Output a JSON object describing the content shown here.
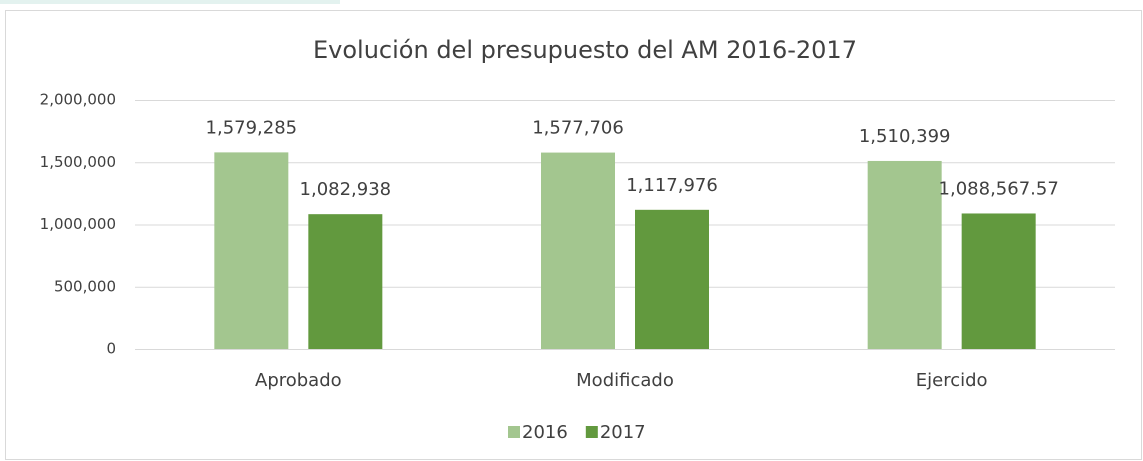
{
  "chart_data": {
    "type": "bar",
    "title": "Evolución del presupuesto del AM 2016-2017",
    "categories": [
      "Aprobado",
      "Modificado",
      "Ejercido"
    ],
    "series": [
      {
        "name": "2016",
        "color": "#a3c68f",
        "values": [
          1579285,
          1577706,
          1510399
        ],
        "value_labels": [
          "1,579,285",
          "1,577,706",
          "1,510,399"
        ]
      },
      {
        "name": "2017",
        "color": "#62993e",
        "values": [
          1082938,
          1117976,
          1088567.57
        ],
        "value_labels": [
          "1,082,938",
          "1,117,976",
          "1,088,567.57"
        ]
      }
    ],
    "ylim": [
      0,
      2000000
    ],
    "yticks": [
      0,
      {
        "value": 500000,
        "label": "500,000"
      },
      {
        "value": 1000000,
        "label": "1,000,000"
      },
      {
        "value": 1500000,
        "label": "1,500,000"
      },
      {
        "value": 2000000,
        "label": "2,000,000"
      }
    ],
    "grid": true,
    "legend": "bottom"
  }
}
